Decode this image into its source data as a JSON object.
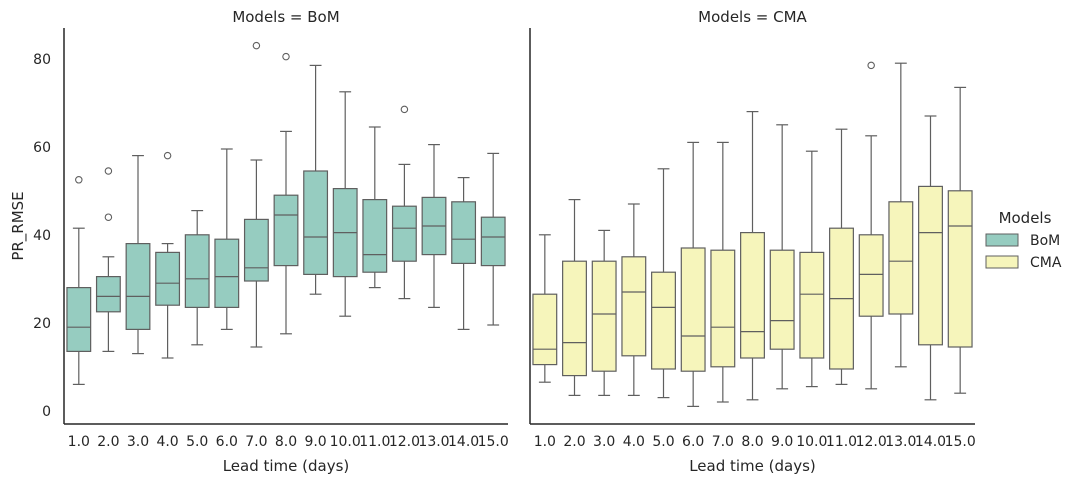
{
  "chart_data": {
    "type": "box",
    "ylabel": "PR_RMSE",
    "xlabel": "Lead time (days)",
    "ylim": [
      -3,
      87
    ],
    "yticks": [
      0,
      20,
      40,
      60,
      80
    ],
    "categories": [
      "1.0",
      "2.0",
      "3.0",
      "4.0",
      "5.0",
      "6.0",
      "7.0",
      "8.0",
      "9.0",
      "10.0",
      "11.0",
      "12.0",
      "13.0",
      "14.0",
      "15.0"
    ],
    "legend": {
      "title": "Models",
      "placement": "right",
      "entries": [
        "BoM",
        "CMA"
      ]
    },
    "colors": {
      "BoM": "#96ccc0",
      "CMA": "#f6f5bb",
      "edge": "#5f5f5f",
      "axis": "#262626"
    },
    "facets": [
      {
        "title": "Models = BoM",
        "series": "BoM",
        "boxes": [
          {
            "whislo": 6.0,
            "q1": 13.5,
            "med": 19.0,
            "q3": 28.0,
            "whishi": 41.5,
            "fliers": [
              52.5
            ]
          },
          {
            "whislo": 13.5,
            "q1": 22.5,
            "med": 26.0,
            "q3": 30.5,
            "whishi": 35.0,
            "fliers": [
              44.0,
              54.5
            ]
          },
          {
            "whislo": 13.0,
            "q1": 18.5,
            "med": 26.0,
            "q3": 38.0,
            "whishi": 58.0,
            "fliers": []
          },
          {
            "whislo": 12.0,
            "q1": 24.0,
            "med": 29.0,
            "q3": 36.0,
            "whishi": 38.0,
            "fliers": [
              58.0
            ]
          },
          {
            "whislo": 15.0,
            "q1": 23.5,
            "med": 30.0,
            "q3": 40.0,
            "whishi": 45.5,
            "fliers": []
          },
          {
            "whislo": 18.5,
            "q1": 23.5,
            "med": 30.5,
            "q3": 39.0,
            "whishi": 59.5,
            "fliers": []
          },
          {
            "whislo": 14.5,
            "q1": 29.5,
            "med": 32.5,
            "q3": 43.5,
            "whishi": 57.0,
            "fliers": [
              83.0
            ]
          },
          {
            "whislo": 17.5,
            "q1": 33.0,
            "med": 44.5,
            "q3": 49.0,
            "whishi": 63.5,
            "fliers": [
              80.5
            ]
          },
          {
            "whislo": 26.5,
            "q1": 31.0,
            "med": 39.5,
            "q3": 54.5,
            "whishi": 78.5,
            "fliers": []
          },
          {
            "whislo": 21.5,
            "q1": 30.5,
            "med": 40.5,
            "q3": 50.5,
            "whishi": 72.5,
            "fliers": []
          },
          {
            "whislo": 28.0,
            "q1": 31.5,
            "med": 35.5,
            "q3": 48.0,
            "whishi": 64.5,
            "fliers": []
          },
          {
            "whislo": 25.5,
            "q1": 34.0,
            "med": 41.5,
            "q3": 46.5,
            "whishi": 56.0,
            "fliers": [
              68.5
            ]
          },
          {
            "whislo": 23.5,
            "q1": 35.5,
            "med": 42.0,
            "q3": 48.5,
            "whishi": 60.5,
            "fliers": []
          },
          {
            "whislo": 18.5,
            "q1": 33.5,
            "med": 39.0,
            "q3": 47.5,
            "whishi": 53.0,
            "fliers": []
          },
          {
            "whislo": 19.5,
            "q1": 33.0,
            "med": 39.5,
            "q3": 44.0,
            "whishi": 58.5,
            "fliers": []
          }
        ]
      },
      {
        "title": "Models = CMA",
        "series": "CMA",
        "boxes": [
          {
            "whislo": 6.5,
            "q1": 10.5,
            "med": 14.0,
            "q3": 26.5,
            "whishi": 40.0,
            "fliers": []
          },
          {
            "whislo": 3.5,
            "q1": 8.0,
            "med": 15.5,
            "q3": 34.0,
            "whishi": 48.0,
            "fliers": []
          },
          {
            "whislo": 3.5,
            "q1": 9.0,
            "med": 22.0,
            "q3": 34.0,
            "whishi": 41.0,
            "fliers": []
          },
          {
            "whislo": 3.5,
            "q1": 12.5,
            "med": 27.0,
            "q3": 35.0,
            "whishi": 47.0,
            "fliers": []
          },
          {
            "whislo": 3.0,
            "q1": 9.5,
            "med": 23.5,
            "q3": 31.5,
            "whishi": 55.0,
            "fliers": []
          },
          {
            "whislo": 1.0,
            "q1": 9.0,
            "med": 17.0,
            "q3": 37.0,
            "whishi": 61.0,
            "fliers": []
          },
          {
            "whislo": 2.0,
            "q1": 10.0,
            "med": 19.0,
            "q3": 36.5,
            "whishi": 61.0,
            "fliers": []
          },
          {
            "whislo": 2.5,
            "q1": 12.0,
            "med": 18.0,
            "q3": 40.5,
            "whishi": 68.0,
            "fliers": []
          },
          {
            "whislo": 5.0,
            "q1": 14.0,
            "med": 20.5,
            "q3": 36.5,
            "whishi": 65.0,
            "fliers": []
          },
          {
            "whislo": 5.5,
            "q1": 12.0,
            "med": 26.5,
            "q3": 36.0,
            "whishi": 59.0,
            "fliers": []
          },
          {
            "whislo": 6.0,
            "q1": 9.5,
            "med": 25.5,
            "q3": 41.5,
            "whishi": 64.0,
            "fliers": []
          },
          {
            "whislo": 5.0,
            "q1": 21.5,
            "med": 31.0,
            "q3": 40.0,
            "whishi": 62.5,
            "fliers": [
              78.5
            ]
          },
          {
            "whislo": 10.0,
            "q1": 22.0,
            "med": 34.0,
            "q3": 47.5,
            "whishi": 79.0,
            "fliers": []
          },
          {
            "whislo": 2.5,
            "q1": 15.0,
            "med": 40.5,
            "q3": 51.0,
            "whishi": 67.0,
            "fliers": []
          },
          {
            "whislo": 4.0,
            "q1": 14.5,
            "med": 42.0,
            "q3": 50.0,
            "whishi": 73.5,
            "fliers": []
          }
        ]
      }
    ]
  }
}
